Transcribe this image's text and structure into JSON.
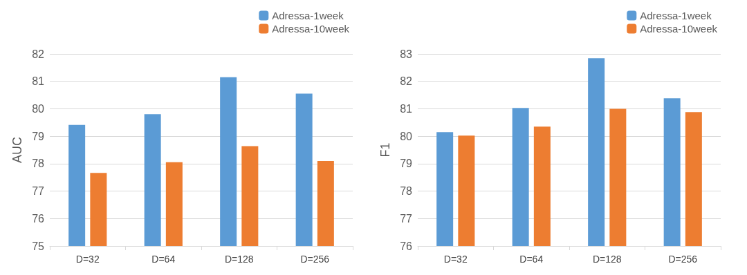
{
  "chart_data": [
    {
      "type": "bar",
      "ylabel": "AUC",
      "categories": [
        "D=32",
        "D=64",
        "D=128",
        "D=256"
      ],
      "ylim": [
        75,
        82
      ],
      "yticks": [
        75,
        76,
        77,
        78,
        79,
        80,
        81,
        82
      ],
      "grid": "y",
      "legend": "top right",
      "series": [
        {
          "name": "Adressa-1week",
          "color": "#5b9bd5",
          "values": [
            79.41,
            79.8,
            81.15,
            80.55
          ]
        },
        {
          "name": "Adressa-10week",
          "color": "#ed7d31",
          "values": [
            77.66,
            78.05,
            78.64,
            78.1
          ]
        }
      ]
    },
    {
      "type": "bar",
      "ylabel": "F1",
      "categories": [
        "D=32",
        "D=64",
        "D=128",
        "D=256"
      ],
      "ylim": [
        76,
        83
      ],
      "yticks": [
        76,
        77,
        78,
        79,
        80,
        81,
        82,
        83
      ],
      "grid": "y",
      "legend": "top right",
      "series": [
        {
          "name": "Adressa-1week",
          "color": "#5b9bd5",
          "values": [
            80.15,
            81.03,
            82.84,
            81.38
          ]
        },
        {
          "name": "Adressa-10week",
          "color": "#ed7d31",
          "values": [
            80.02,
            80.35,
            81.0,
            80.88
          ]
        }
      ]
    }
  ]
}
